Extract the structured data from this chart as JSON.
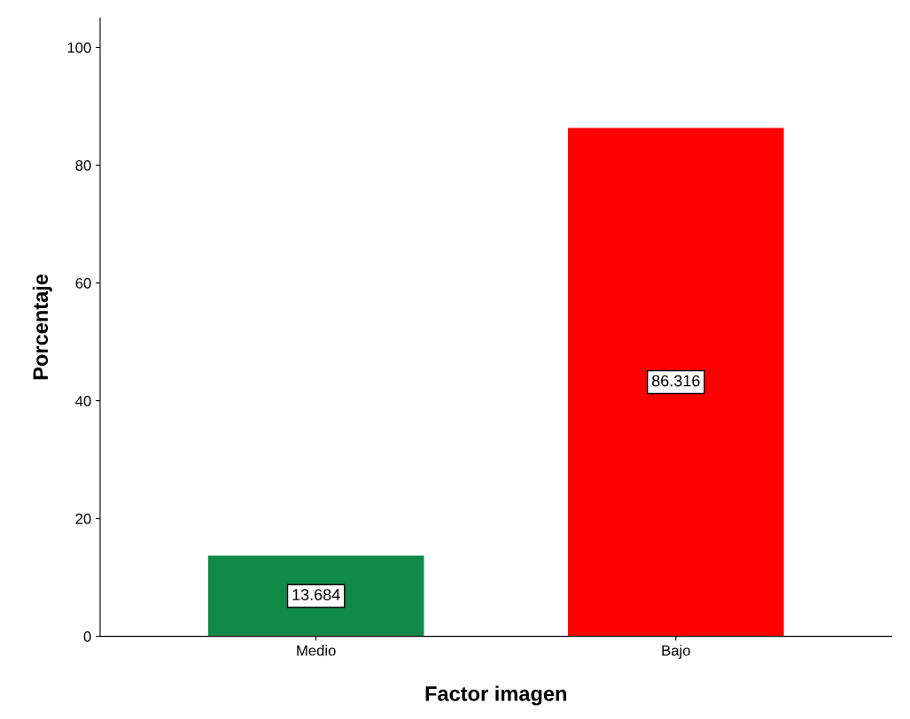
{
  "chart_data": {
    "type": "bar",
    "xlabel": "Factor imagen",
    "ylabel": "Porcentaje",
    "categories": [
      "Medio",
      "Bajo"
    ],
    "values": [
      13.684,
      86.316
    ],
    "colors": [
      "#128a47",
      "#ff0000"
    ],
    "ylim": [
      0,
      105
    ],
    "yticks": [
      0,
      20,
      40,
      60,
      80,
      100
    ],
    "data_labels": true,
    "grid": false,
    "legend": false
  }
}
